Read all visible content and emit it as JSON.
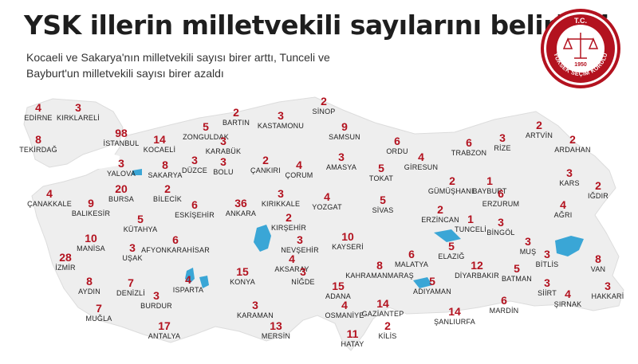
{
  "header": {
    "title": "YSK illerin milletvekili sayılarını belirledi",
    "subtitle_line1": "Kocaeli ve Sakarya'nın milletvekili sayısı birer arttı, Tunceli ve",
    "subtitle_line2": "Bayburt'un milletvekili sayısı birer azaldı"
  },
  "seal": {
    "top_text": "T.C.",
    "year": "1950",
    "ring_text": "YÜKSEK SEÇİM KURULU",
    "color": "#b3121f"
  },
  "colors": {
    "number": "#b3121f",
    "land": "#eeeeee",
    "border": "#ffffff",
    "water": "#3aa6d6"
  },
  "provinces": [
    {
      "name": "EDİRNE",
      "seats": "4"
    },
    {
      "name": "KIRKLARELİ",
      "seats": "3"
    },
    {
      "name": "TEKİRDAĞ",
      "seats": "8"
    },
    {
      "name": "İSTANBUL",
      "seats": "98"
    },
    {
      "name": "KOCAELİ",
      "seats": "14"
    },
    {
      "name": "ZONGULDAK",
      "seats": "5"
    },
    {
      "name": "BARTIN",
      "seats": "2"
    },
    {
      "name": "KASTAMONU",
      "seats": "3"
    },
    {
      "name": "SİNOP",
      "seats": "2"
    },
    {
      "name": "SAMSUN",
      "seats": "9"
    },
    {
      "name": "ORDU",
      "seats": "6"
    },
    {
      "name": "TRABZON",
      "seats": "6"
    },
    {
      "name": "RİZE",
      "seats": "3"
    },
    {
      "name": "ARTVİN",
      "seats": "2"
    },
    {
      "name": "ARDAHAN",
      "seats": "2"
    },
    {
      "name": "KARABÜK",
      "seats": "3"
    },
    {
      "name": "DÜZCE",
      "seats": "3"
    },
    {
      "name": "YALOVA",
      "seats": "3"
    },
    {
      "name": "SAKARYA",
      "seats": "8"
    },
    {
      "name": "BOLU",
      "seats": "3"
    },
    {
      "name": "ÇANKIRI",
      "seats": "2"
    },
    {
      "name": "ÇORUM",
      "seats": "4"
    },
    {
      "name": "AMASYA",
      "seats": "3"
    },
    {
      "name": "TOKAT",
      "seats": "5"
    },
    {
      "name": "GİRESUN",
      "seats": "4"
    },
    {
      "name": "GÜMÜŞHANE",
      "seats": "2"
    },
    {
      "name": "BAYBURT",
      "seats": "1"
    },
    {
      "name": "KARS",
      "seats": "3"
    },
    {
      "name": "IĞDIR",
      "seats": "2"
    },
    {
      "name": "ÇANAKKALE",
      "seats": "4"
    },
    {
      "name": "BURSA",
      "seats": "20"
    },
    {
      "name": "BİLECİK",
      "seats": "2"
    },
    {
      "name": "ESKİŞEHİR",
      "seats": "6"
    },
    {
      "name": "ANKARA",
      "seats": "36"
    },
    {
      "name": "KIRIKKALE",
      "seats": "3"
    },
    {
      "name": "YOZGAT",
      "seats": "4"
    },
    {
      "name": "SİVAS",
      "seats": "5"
    },
    {
      "name": "ERZİNCAN",
      "seats": "2"
    },
    {
      "name": "ERZURUM",
      "seats": "6"
    },
    {
      "name": "AĞRI",
      "seats": "4"
    },
    {
      "name": "BALIKESİR",
      "seats": "9"
    },
    {
      "name": "KÜTAHYA",
      "seats": "5"
    },
    {
      "name": "KIRŞEHİR",
      "seats": "2"
    },
    {
      "name": "TUNCELİ",
      "seats": "1"
    },
    {
      "name": "BİNGÖL",
      "seats": "3"
    },
    {
      "name": "MUŞ",
      "seats": "3"
    },
    {
      "name": "MANİSA",
      "seats": "10"
    },
    {
      "name": "AFYONKARAHİSAR",
      "seats": "6"
    },
    {
      "name": "UŞAK",
      "seats": "3"
    },
    {
      "name": "NEVŞEHİR",
      "seats": "3"
    },
    {
      "name": "KAYSERİ",
      "seats": "10"
    },
    {
      "name": "MALATYA",
      "seats": "6"
    },
    {
      "name": "ELAZIĞ",
      "seats": "5"
    },
    {
      "name": "BİTLİS",
      "seats": "3"
    },
    {
      "name": "VAN",
      "seats": "8"
    },
    {
      "name": "İZMİR",
      "seats": "28"
    },
    {
      "name": "AKSARAY",
      "seats": "4"
    },
    {
      "name": "KAHRAMANMARAŞ",
      "seats": "8"
    },
    {
      "name": "DİYARBAKIR",
      "seats": "12"
    },
    {
      "name": "BATMAN",
      "seats": "5"
    },
    {
      "name": "SİİRT",
      "seats": "3"
    },
    {
      "name": "AYDIN",
      "seats": "8"
    },
    {
      "name": "DENİZLİ",
      "seats": "7"
    },
    {
      "name": "ISPARTA",
      "seats": "4"
    },
    {
      "name": "KONYA",
      "seats": "15"
    },
    {
      "name": "NİĞDE",
      "seats": "3"
    },
    {
      "name": "ADANA",
      "seats": "15"
    },
    {
      "name": "ADIYAMAN",
      "seats": "5"
    },
    {
      "name": "BURDUR",
      "seats": "3"
    },
    {
      "name": "MUĞLA",
      "seats": "7"
    },
    {
      "name": "KARAMAN",
      "seats": "3"
    },
    {
      "name": "OSMANİYE",
      "seats": "4"
    },
    {
      "name": "GAZİANTEP",
      "seats": "14"
    },
    {
      "name": "ŞANLIURFA",
      "seats": "14"
    },
    {
      "name": "MARDİN",
      "seats": "6"
    },
    {
      "name": "ŞIRNAK",
      "seats": "4"
    },
    {
      "name": "HAKKARİ",
      "seats": "3"
    },
    {
      "name": "ANTALYA",
      "seats": "17"
    },
    {
      "name": "MERSİN",
      "seats": "13"
    },
    {
      "name": "KİLİS",
      "seats": "2"
    },
    {
      "name": "HATAY",
      "seats": "11"
    }
  ]
}
